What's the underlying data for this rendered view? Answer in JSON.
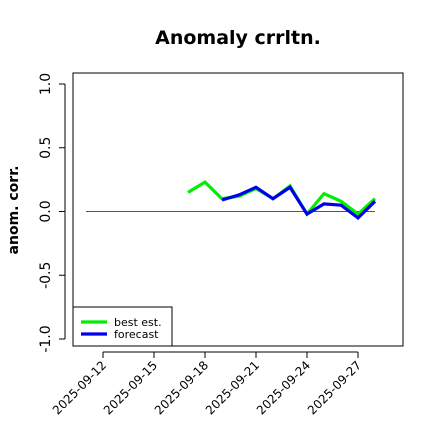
{
  "chart_data": {
    "type": "line",
    "title": "Anomaly crrltn.",
    "xlabel": "",
    "ylabel": "anom. corr.",
    "x": [
      "2025-09-11",
      "2025-09-12",
      "2025-09-13",
      "2025-09-14",
      "2025-09-15",
      "2025-09-16",
      "2025-09-17",
      "2025-09-18",
      "2025-09-19",
      "2025-09-20",
      "2025-09-21",
      "2025-09-22",
      "2025-09-23",
      "2025-09-24",
      "2025-09-25",
      "2025-09-26",
      "2025-09-27",
      "2025-09-28"
    ],
    "x_tick_labels": [
      "2025-09-12",
      "2025-09-15",
      "2025-09-18",
      "2025-09-21",
      "2025-09-24",
      "2025-09-27"
    ],
    "highlighted_tick": "2025-09-18",
    "highlight_color": "#228B22",
    "ylim": [
      -1.0,
      1.0
    ],
    "y_ticks": [
      "-1.0",
      "-0.5",
      "0.0",
      "0.5",
      "1.0"
    ],
    "reference_line": 0.0,
    "series": [
      {
        "name": "best est.",
        "color": "#00ee00",
        "values": [
          null,
          null,
          null,
          null,
          null,
          null,
          0.15,
          0.23,
          0.1,
          0.12,
          0.18,
          0.1,
          0.2,
          -0.02,
          0.14,
          0.08,
          -0.02,
          0.1
        ]
      },
      {
        "name": "forecast",
        "color": "#0000ee",
        "values": [
          null,
          null,
          null,
          null,
          null,
          null,
          null,
          null,
          0.09,
          0.13,
          0.19,
          0.1,
          0.19,
          -0.02,
          0.06,
          0.05,
          -0.05,
          0.08
        ]
      }
    ],
    "legend_position": "bottom-left"
  }
}
